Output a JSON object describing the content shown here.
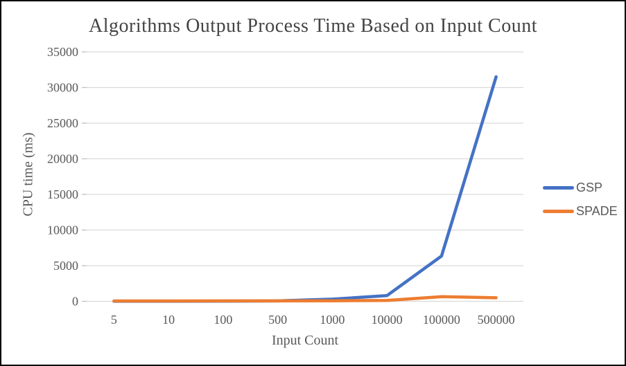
{
  "page": {
    "background": "#ffffff",
    "frame_border_color": "#000000"
  },
  "chart_data": {
    "type": "line",
    "title": "Algorithms Output Process Time Based on Input Count",
    "xlabel": "Input Count",
    "ylabel": "CPU time (ms)",
    "categories": [
      "5",
      "10",
      "100",
      "500",
      "1000",
      "10000",
      "100000",
      "500000"
    ],
    "series": [
      {
        "name": "GSP",
        "color": "#4472C4",
        "values": [
          10,
          12,
          30,
          60,
          300,
          800,
          6350,
          31500
        ]
      },
      {
        "name": "SPADE",
        "color": "#ED7D31",
        "values": [
          50,
          50,
          55,
          60,
          75,
          120,
          650,
          500
        ]
      }
    ],
    "ylim": [
      0,
      35000
    ],
    "ytick_step": 5000,
    "ytick_labels": [
      "0",
      "5000",
      "10000",
      "15000",
      "20000",
      "25000",
      "30000",
      "35000"
    ],
    "grid": true,
    "gridline_color": "#D9D9D9",
    "tick_color": "#BFBFBF",
    "text_color": "#595959",
    "title_color": "#444444",
    "legend_position": "right"
  }
}
